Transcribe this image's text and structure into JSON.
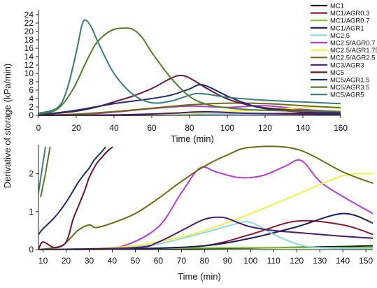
{
  "chart_data": [
    {
      "type": "line",
      "panel": "top",
      "xlabel": "Time (min)",
      "ylabel": "Derivative of storage (kPa/min)",
      "xlim": [
        0,
        160
      ],
      "ylim": [
        0,
        24
      ],
      "xticks": [
        0,
        20,
        40,
        60,
        80,
        100,
        120,
        140,
        160
      ],
      "yticks": [
        0,
        2,
        4,
        6,
        8,
        10,
        12,
        14,
        16,
        18,
        20,
        22,
        24
      ],
      "grid": false,
      "legend_position": "top-right",
      "series": [
        {
          "name": "MC1",
          "color": "#1a1a1a",
          "x": [
            0,
            40,
            80,
            120,
            160
          ],
          "y": [
            0,
            0.05,
            0.1,
            0.2,
            0.3
          ]
        },
        {
          "name": "MC1/AGR0.3",
          "color": "#8b1a2b",
          "x": [
            0,
            40,
            80,
            120,
            160
          ],
          "y": [
            0,
            0.05,
            0.2,
            0.4,
            0.6
          ]
        },
        {
          "name": "MC1/AGR0.7",
          "color": "#7cc92c",
          "x": [
            0,
            40,
            80,
            120,
            160
          ],
          "y": [
            0,
            0.05,
            0.1,
            0.15,
            0.2
          ]
        },
        {
          "name": "MC1/AGR1",
          "color": "#1c1f5a",
          "x": [
            0,
            40,
            80,
            120,
            160
          ],
          "y": [
            0,
            0.05,
            0.1,
            0.2,
            0.3
          ]
        },
        {
          "name": "MC2.5",
          "color": "#8fd6e6",
          "x": [
            0,
            40,
            80,
            120,
            160
          ],
          "y": [
            0,
            0.1,
            0.3,
            0.2,
            0.1
          ]
        },
        {
          "name": "MC2.5/AGR0.7",
          "color": "#b13fd1",
          "x": [
            0,
            30,
            60,
            80,
            100,
            120,
            140,
            160
          ],
          "y": [
            0,
            0.4,
            1.6,
            2.2,
            1.9,
            2.3,
            1.4,
            0.9
          ]
        },
        {
          "name": "MC2.5/AGR1.75",
          "color": "#f0f04a",
          "x": [
            0,
            40,
            80,
            120,
            150,
            160
          ],
          "y": [
            0,
            0.1,
            0.5,
            1.4,
            2.0,
            2.0
          ]
        },
        {
          "name": "MC2.5/AGR2.5",
          "color": "#6d6b14",
          "x": [
            0,
            20,
            40,
            60,
            80,
            100,
            120,
            140,
            160
          ],
          "y": [
            0,
            0.3,
            0.9,
            1.7,
            2.5,
            2.9,
            2.8,
            2.3,
            1.8
          ]
        },
        {
          "name": "MC3/AGR3",
          "color": "#4a1d6b",
          "x": [
            0,
            40,
            70,
            88,
            110,
            140,
            160
          ],
          "y": [
            0,
            0.1,
            0.5,
            0.85,
            0.5,
            0.3,
            0.2
          ]
        },
        {
          "name": "MC5",
          "color": "#6b1538",
          "x": [
            0,
            10,
            20,
            30,
            40,
            50,
            60,
            70,
            75,
            80,
            90,
            100,
            110,
            120,
            140,
            160
          ],
          "y": [
            0.2,
            0.5,
            1.0,
            1.9,
            3.2,
            4.6,
            6.4,
            8.8,
            9.5,
            8.9,
            6.2,
            3.9,
            2.6,
            1.8,
            1.1,
            0.8
          ]
        },
        {
          "name": "MC5/AGR1.5",
          "color": "#1e2e6e",
          "x": [
            0,
            10,
            20,
            30,
            40,
            50,
            60,
            70,
            80,
            85,
            90,
            100,
            110,
            120,
            140,
            160
          ],
          "y": [
            0.2,
            0.6,
            1.2,
            2.0,
            2.8,
            3.4,
            4.0,
            4.8,
            6.3,
            7.3,
            6.8,
            4.6,
            2.8,
            1.6,
            0.8,
            0.5
          ]
        },
        {
          "name": "MC5/AGR3.5",
          "color": "#4f7d2a",
          "x": [
            0,
            10,
            18,
            25,
            30,
            35,
            40,
            45,
            50,
            55,
            60,
            70,
            80,
            90,
            100,
            110,
            120,
            140,
            160
          ],
          "y": [
            0.3,
            1.5,
            6.0,
            12.5,
            16.8,
            19.2,
            20.5,
            20.8,
            20.5,
            18.5,
            15.0,
            9.0,
            4.5,
            2.5,
            1.8,
            1.4,
            1.2,
            1.0,
            0.9
          ]
        },
        {
          "name": "MC5/AGR5",
          "color": "#3a7c7c",
          "x": [
            0,
            10,
            15,
            20,
            23,
            25,
            28,
            32,
            40,
            50,
            60,
            70,
            80,
            84,
            90,
            100,
            120,
            140,
            160
          ],
          "y": [
            0.5,
            1.8,
            6.0,
            15.0,
            21.5,
            22.7,
            21.0,
            17.0,
            10.0,
            5.0,
            3.0,
            3.4,
            4.8,
            5.2,
            5.0,
            4.3,
            3.6,
            3.2,
            2.8
          ]
        }
      ]
    },
    {
      "type": "line",
      "panel": "bottom",
      "xlabel": "Time (min)",
      "xlim": [
        8,
        153
      ],
      "ylim": [
        0,
        2.75
      ],
      "xticks": [
        10,
        20,
        30,
        40,
        50,
        60,
        70,
        80,
        90,
        100,
        110,
        120,
        130,
        140,
        150
      ],
      "yticks": [
        0,
        1,
        2
      ],
      "grid": false,
      "series": [
        {
          "name": "MC1",
          "color": "#1a1a1a",
          "x": [
            8,
            40,
            80,
            110,
            140,
            153
          ],
          "y": [
            0,
            0.01,
            0.03,
            0.05,
            0.08,
            0.1
          ]
        },
        {
          "name": "MC1/AGR0.3",
          "color": "#8b1a2b",
          "x": [
            8,
            50,
            80,
            100,
            120,
            140,
            153
          ],
          "y": [
            0,
            0.02,
            0.1,
            0.4,
            0.75,
            0.65,
            0.4
          ]
        },
        {
          "name": "MC1/AGR0.7",
          "color": "#7cc92c",
          "x": [
            8,
            40,
            70,
            100,
            130,
            153
          ],
          "y": [
            0,
            0.02,
            0.04,
            0.05,
            0.05,
            0.05
          ]
        },
        {
          "name": "MC1/AGR1",
          "color": "#1c1f5a",
          "x": [
            8,
            50,
            80,
            100,
            120,
            140,
            153
          ],
          "y": [
            0,
            0.02,
            0.1,
            0.3,
            0.6,
            0.95,
            0.7
          ]
        },
        {
          "name": "MC2.5",
          "color": "#8fd6e6",
          "x": [
            8,
            40,
            60,
            80,
            95,
            100,
            110,
            120,
            130,
            153
          ],
          "y": [
            0,
            0.03,
            0.15,
            0.45,
            0.7,
            0.72,
            0.4,
            0.15,
            0.05,
            0.02
          ]
        },
        {
          "name": "MC2.5/AGR0.7",
          "color": "#b13fd1",
          "x": [
            8,
            30,
            45,
            60,
            70,
            78,
            85,
            95,
            105,
            115,
            122,
            130,
            140,
            153
          ],
          "y": [
            0,
            0.02,
            0.1,
            0.6,
            1.5,
            2.15,
            2.05,
            1.9,
            1.95,
            2.2,
            2.35,
            1.8,
            1.4,
            0.95
          ]
        },
        {
          "name": "MC2.5/AGR1.75",
          "color": "#f0f04a",
          "x": [
            8,
            40,
            60,
            80,
            100,
            120,
            140,
            153
          ],
          "y": [
            0,
            0.05,
            0.2,
            0.5,
            0.95,
            1.45,
            1.95,
            2.0
          ]
        },
        {
          "name": "MC2.5/AGR2.5",
          "color": "#6d6b14",
          "x": [
            8,
            18,
            25,
            30,
            33,
            40,
            50,
            60,
            70,
            80,
            90,
            100,
            120,
            140,
            153
          ],
          "y": [
            0,
            0.1,
            0.5,
            0.65,
            0.58,
            0.7,
            0.95,
            1.35,
            1.8,
            2.2,
            2.5,
            2.7,
            2.65,
            2.05,
            1.75
          ]
        },
        {
          "name": "MC3/AGR3",
          "color": "#4a1d6b",
          "x": [
            8,
            50,
            60,
            70,
            80,
            88,
            95,
            100,
            110,
            120,
            140,
            153
          ],
          "y": [
            0,
            0.05,
            0.2,
            0.5,
            0.8,
            0.85,
            0.7,
            0.6,
            0.5,
            0.45,
            0.35,
            0.3
          ]
        },
        {
          "name": "MC5",
          "color": "#6b1538",
          "x": [
            8,
            10,
            15,
            20,
            23,
            25,
            28,
            30,
            33,
            35,
            38,
            40
          ],
          "y": [
            0,
            0.2,
            0.05,
            0.2,
            0.8,
            1.1,
            1.55,
            1.9,
            2.25,
            2.4,
            2.6,
            2.7
          ]
        },
        {
          "name": "MC5/AGR1.5",
          "color": "#1e2e6e",
          "x": [
            8,
            10,
            15,
            20,
            25,
            28,
            30,
            32,
            35,
            37
          ],
          "y": [
            0.4,
            0.55,
            0.85,
            1.25,
            1.75,
            2.0,
            2.15,
            2.35,
            2.55,
            2.7
          ]
        },
        {
          "name": "MC5/AGR3.5",
          "color": "#4f7d2a",
          "x": [
            9,
            10,
            11,
            12,
            13
          ],
          "y": [
            1.4,
            1.7,
            2.0,
            2.35,
            2.7
          ]
        },
        {
          "name": "MC5/AGR5",
          "color": "#3a7c7c",
          "x": [
            8,
            9,
            10,
            11
          ],
          "y": [
            1.5,
            1.9,
            2.3,
            2.7
          ]
        }
      ]
    }
  ]
}
